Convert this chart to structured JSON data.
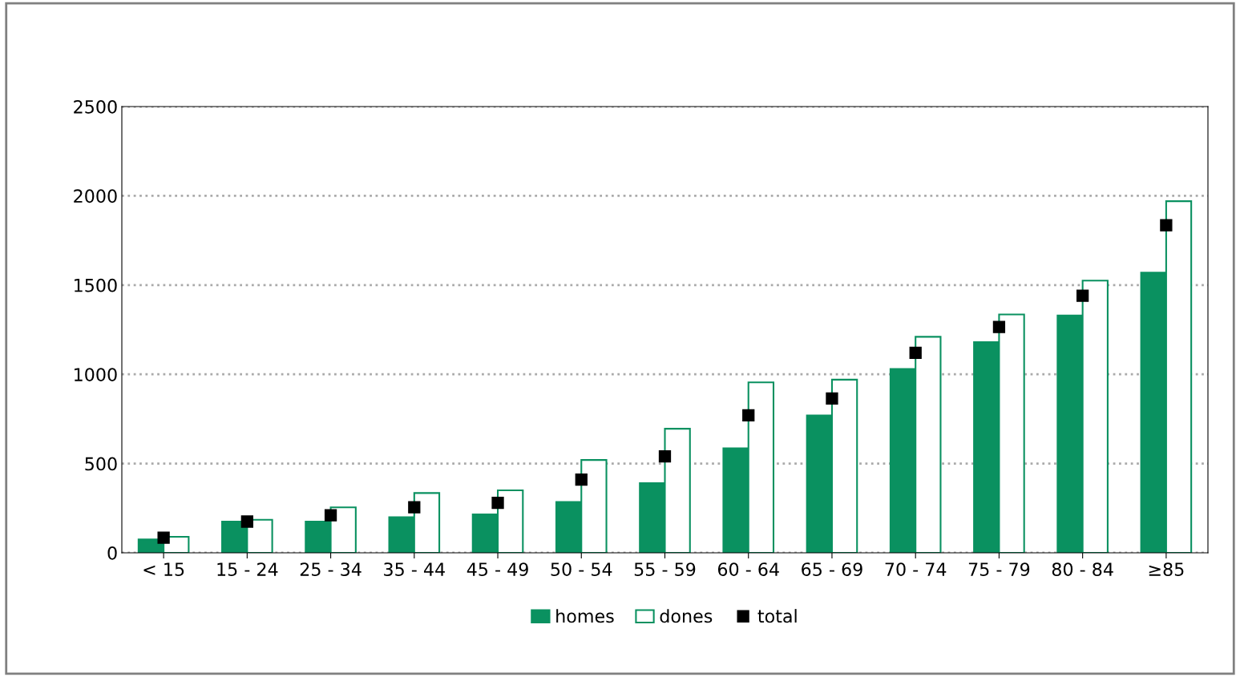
{
  "chart_data": {
    "type": "bar",
    "categories": [
      "< 15",
      "15 - 24",
      "25 - 34",
      "35 - 44",
      "45 - 49",
      "50 - 54",
      "55 - 59",
      "60 - 64",
      "65 - 69",
      "70 - 74",
      "75 - 79",
      "80 - 84",
      "≥85"
    ],
    "series": [
      {
        "name": "homes",
        "color": "#0a9160",
        "values": [
          75,
          175,
          175,
          200,
          215,
          285,
          390,
          585,
          770,
          1030,
          1180,
          1330,
          1570
        ]
      },
      {
        "name": "dones",
        "color": "#ffffff",
        "values": [
          90,
          185,
          255,
          335,
          350,
          520,
          695,
          955,
          970,
          1210,
          1335,
          1525,
          1970
        ]
      },
      {
        "name": "total",
        "type": "scatter",
        "color": "#000000",
        "marker": "square",
        "values": [
          85,
          175,
          210,
          255,
          280,
          410,
          540,
          770,
          865,
          1120,
          1265,
          1440,
          1835
        ]
      }
    ],
    "ylim": [
      0,
      2500
    ],
    "yticks": [
      0,
      500,
      1000,
      1500,
      2000,
      2500
    ],
    "grid": "y",
    "legend": "bottom"
  }
}
